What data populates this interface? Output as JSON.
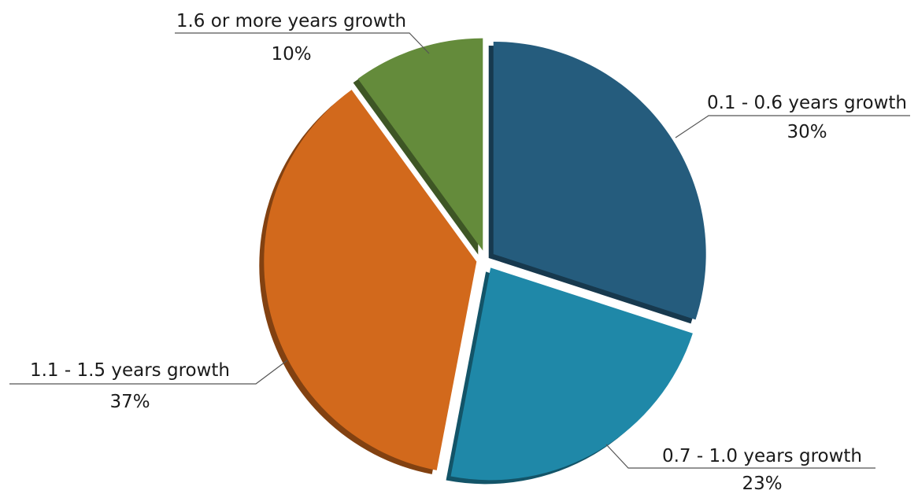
{
  "chart_data": {
    "type": "pie",
    "title": "",
    "slices": [
      {
        "label": "0.1 - 0.6 years growth",
        "value": 30,
        "value_label": "30%",
        "color": "#255C7D"
      },
      {
        "label": "0.7 - 1.0 years growth",
        "value": 23,
        "value_label": "23%",
        "color": "#1F88A8"
      },
      {
        "label": "1.1 - 1.5 years growth",
        "value": 37,
        "value_label": "37%",
        "color": "#D2691C"
      },
      {
        "label": "1.6 or more years growth",
        "value": 10,
        "value_label": "10%",
        "color": "#648B3B"
      }
    ],
    "exploded": true,
    "style": "3d-shadow",
    "legend": "none"
  }
}
